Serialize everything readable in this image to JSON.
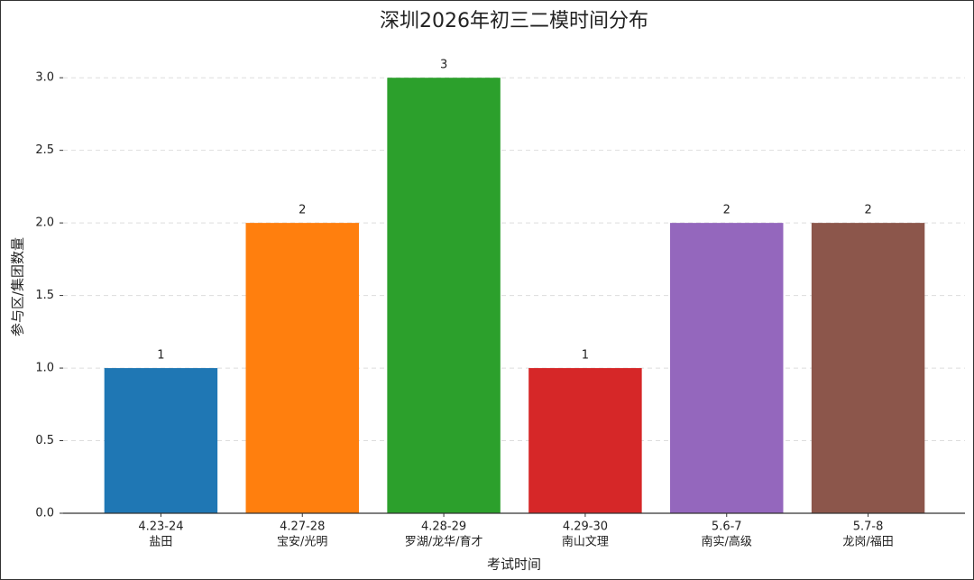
{
  "chart_data": {
    "type": "bar",
    "title": "深圳2026年初三二模时间分布",
    "x_label": "考试时间",
    "y_label": "参与区/集团数量",
    "categories": [
      [
        "4.23-24",
        "盐田"
      ],
      [
        "4.27-28",
        "宝安/光明"
      ],
      [
        "4.28-29",
        "罗湖/龙华/育才"
      ],
      [
        "4.29-30",
        "南山文理"
      ],
      [
        "5.6-7",
        "南实/高级"
      ],
      [
        "5.7-8",
        "龙岗/福田"
      ]
    ],
    "values": [
      1,
      2,
      3,
      1,
      2,
      2
    ],
    "colors": [
      "#1f77b4",
      "#ff7f0e",
      "#2ca02c",
      "#d62728",
      "#9467bd",
      "#8c564b"
    ],
    "ylim": [
      0,
      3.2
    ],
    "yticks": [
      {
        "value": 0,
        "label": "0.0"
      },
      0.5,
      {
        "value": 1,
        "label": "1.0"
      },
      1.5,
      {
        "value": 2,
        "label": "2.0"
      },
      2.5,
      {
        "value": 3,
        "label": "3.0"
      }
    ],
    "grid": true
  }
}
